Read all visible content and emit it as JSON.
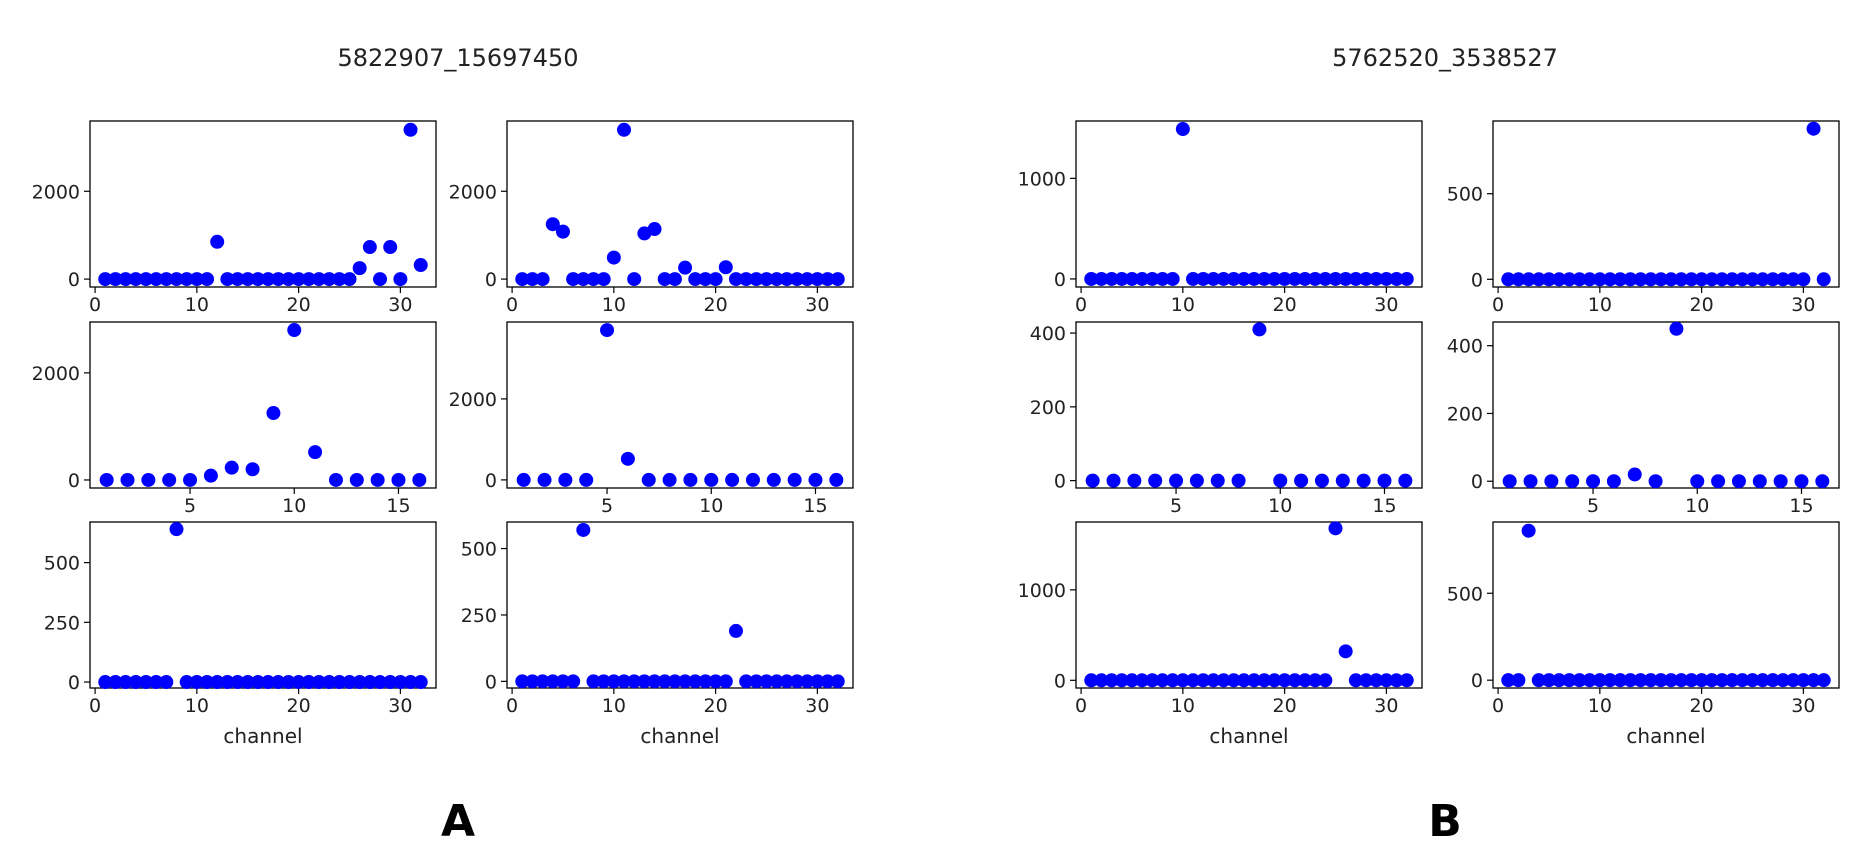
{
  "figure": {
    "panels": [
      {
        "letter": "A",
        "title": "5822907_15697450"
      },
      {
        "letter": "B",
        "title": "5762520_3538527"
      }
    ],
    "marker_color": "#0000ff",
    "text_color": "#222222"
  },
  "chart_data": [
    {
      "panel": "A",
      "position": "row1-left",
      "type": "scatter",
      "xticks": [
        0,
        10,
        20,
        30
      ],
      "yticks": [
        0,
        2000
      ],
      "xlim": [
        -0.5,
        33.5
      ],
      "ylim": [
        -180,
        3600
      ],
      "xlabel": "",
      "x": [
        1,
        2,
        3,
        4,
        5,
        6,
        7,
        8,
        9,
        10,
        11,
        12,
        13,
        14,
        15,
        16,
        17,
        18,
        19,
        20,
        21,
        22,
        23,
        24,
        25,
        26,
        27,
        28,
        29,
        30,
        31,
        32
      ],
      "y": [
        0,
        0,
        0,
        0,
        0,
        0,
        0,
        0,
        0,
        0,
        0,
        850,
        0,
        0,
        0,
        0,
        0,
        0,
        0,
        0,
        0,
        0,
        0,
        0,
        0,
        250,
        730,
        0,
        730,
        0,
        3400,
        320
      ]
    },
    {
      "panel": "A",
      "position": "row1-right",
      "type": "scatter",
      "xticks": [
        0,
        10,
        20,
        30
      ],
      "yticks": [
        0,
        2000
      ],
      "xlim": [
        -0.5,
        33.5
      ],
      "ylim": [
        -180,
        3600
      ],
      "xlabel": "",
      "x": [
        1,
        2,
        3,
        4,
        5,
        6,
        7,
        8,
        9,
        10,
        11,
        12,
        13,
        14,
        15,
        16,
        17,
        18,
        19,
        20,
        21,
        22,
        23,
        24,
        25,
        26,
        27,
        28,
        29,
        30,
        31,
        32
      ],
      "y": [
        0,
        0,
        0,
        1250,
        1080,
        0,
        0,
        0,
        0,
        490,
        3400,
        0,
        1040,
        1140,
        0,
        0,
        260,
        0,
        0,
        0,
        270,
        0,
        0,
        0,
        0,
        0,
        0,
        0,
        0,
        0,
        0,
        0
      ]
    },
    {
      "panel": "A",
      "position": "row2-left",
      "type": "scatter",
      "xticks": [
        5,
        10,
        15
      ],
      "yticks": [
        0,
        2000
      ],
      "xlim": [
        0.2,
        16.8
      ],
      "ylim": [
        -150,
        2950
      ],
      "xlabel": "",
      "x": [
        1,
        2,
        3,
        4,
        5,
        6,
        7,
        8,
        9,
        10,
        11,
        12,
        13,
        14,
        15,
        16
      ],
      "y": [
        0,
        0,
        0,
        0,
        0,
        80,
        230,
        200,
        1250,
        2800,
        520,
        0,
        0,
        0,
        0,
        0
      ]
    },
    {
      "panel": "A",
      "position": "row2-right",
      "type": "scatter",
      "xticks": [
        5,
        10,
        15
      ],
      "yticks": [
        0,
        2000
      ],
      "xlim": [
        0.2,
        16.8
      ],
      "ylim": [
        -200,
        3900
      ],
      "xlabel": "",
      "x": [
        1,
        2,
        3,
        4,
        5,
        6,
        7,
        8,
        9,
        10,
        11,
        12,
        13,
        14,
        15,
        16
      ],
      "y": [
        0,
        0,
        0,
        0,
        3700,
        520,
        0,
        0,
        0,
        0,
        0,
        0,
        0,
        0,
        0,
        0
      ]
    },
    {
      "panel": "A",
      "position": "row3-left",
      "type": "scatter",
      "xticks": [
        0,
        10,
        20,
        30
      ],
      "yticks": [
        0,
        250,
        500
      ],
      "xlim": [
        -0.5,
        33.5
      ],
      "ylim": [
        -25,
        670
      ],
      "xlabel": "channel",
      "x": [
        1,
        2,
        3,
        4,
        5,
        6,
        7,
        8,
        9,
        10,
        11,
        12,
        13,
        14,
        15,
        16,
        17,
        18,
        19,
        20,
        21,
        22,
        23,
        24,
        25,
        26,
        27,
        28,
        29,
        30,
        31,
        32
      ],
      "y": [
        0,
        0,
        0,
        0,
        0,
        0,
        0,
        640,
        0,
        0,
        0,
        0,
        0,
        0,
        0,
        0,
        0,
        0,
        0,
        0,
        0,
        0,
        0,
        0,
        0,
        0,
        0,
        0,
        0,
        0,
        0,
        0
      ]
    },
    {
      "panel": "A",
      "position": "row3-right",
      "type": "scatter",
      "xticks": [
        0,
        10,
        20,
        30
      ],
      "yticks": [
        0,
        250,
        500
      ],
      "xlim": [
        -0.5,
        33.5
      ],
      "ylim": [
        -25,
        600
      ],
      "xlabel": "channel",
      "x": [
        1,
        2,
        3,
        4,
        5,
        6,
        7,
        8,
        9,
        10,
        11,
        12,
        13,
        14,
        15,
        16,
        17,
        18,
        19,
        20,
        21,
        22,
        23,
        24,
        25,
        26,
        27,
        28,
        29,
        30,
        31,
        32
      ],
      "y": [
        0,
        0,
        0,
        0,
        0,
        0,
        570,
        0,
        0,
        0,
        0,
        0,
        0,
        0,
        0,
        0,
        0,
        0,
        0,
        0,
        0,
        190,
        0,
        0,
        0,
        0,
        0,
        0,
        0,
        0,
        0,
        0
      ]
    },
    {
      "panel": "B",
      "position": "row1-left",
      "type": "scatter",
      "xticks": [
        0,
        10,
        20,
        30
      ],
      "yticks": [
        0,
        1000
      ],
      "xlim": [
        -0.5,
        33.5
      ],
      "ylim": [
        -80,
        1570
      ],
      "xlabel": "",
      "x": [
        1,
        2,
        3,
        4,
        5,
        6,
        7,
        8,
        9,
        10,
        11,
        12,
        13,
        14,
        15,
        16,
        17,
        18,
        19,
        20,
        21,
        22,
        23,
        24,
        25,
        26,
        27,
        28,
        29,
        30,
        31,
        32
      ],
      "y": [
        0,
        0,
        0,
        0,
        0,
        0,
        0,
        0,
        0,
        1490,
        0,
        0,
        0,
        0,
        0,
        0,
        0,
        0,
        0,
        0,
        0,
        0,
        0,
        0,
        0,
        0,
        0,
        0,
        0,
        0,
        0,
        0
      ]
    },
    {
      "panel": "B",
      "position": "row1-right",
      "type": "scatter",
      "xticks": [
        0,
        10,
        20,
        30
      ],
      "yticks": [
        0,
        500
      ],
      "xlim": [
        -0.5,
        33.5
      ],
      "ylim": [
        -45,
        925
      ],
      "xlabel": "",
      "x": [
        1,
        2,
        3,
        4,
        5,
        6,
        7,
        8,
        9,
        10,
        11,
        12,
        13,
        14,
        15,
        16,
        17,
        18,
        19,
        20,
        21,
        22,
        23,
        24,
        25,
        26,
        27,
        28,
        29,
        30,
        31,
        32
      ],
      "y": [
        0,
        0,
        0,
        0,
        0,
        0,
        0,
        0,
        0,
        0,
        0,
        0,
        0,
        0,
        0,
        0,
        0,
        0,
        0,
        0,
        0,
        0,
        0,
        0,
        0,
        0,
        0,
        0,
        0,
        0,
        880,
        0
      ]
    },
    {
      "panel": "B",
      "position": "row2-left",
      "type": "scatter",
      "xticks": [
        5,
        10,
        15
      ],
      "yticks": [
        0,
        200,
        400
      ],
      "xlim": [
        0.2,
        16.8
      ],
      "ylim": [
        -20,
        430
      ],
      "xlabel": "",
      "x": [
        1,
        2,
        3,
        4,
        5,
        6,
        7,
        8,
        9,
        10,
        11,
        12,
        13,
        14,
        15,
        16
      ],
      "y": [
        0,
        0,
        0,
        0,
        0,
        0,
        0,
        0,
        410,
        0,
        0,
        0,
        0,
        0,
        0,
        0
      ]
    },
    {
      "panel": "B",
      "position": "row2-right",
      "type": "scatter",
      "xticks": [
        5,
        10,
        15
      ],
      "yticks": [
        0,
        200,
        400
      ],
      "xlim": [
        0.2,
        16.8
      ],
      "ylim": [
        -20,
        470
      ],
      "xlabel": "",
      "x": [
        1,
        2,
        3,
        4,
        5,
        6,
        7,
        8,
        9,
        10,
        11,
        12,
        13,
        14,
        15,
        16
      ],
      "y": [
        0,
        0,
        0,
        0,
        0,
        0,
        20,
        0,
        450,
        0,
        0,
        0,
        0,
        0,
        0,
        0
      ]
    },
    {
      "panel": "B",
      "position": "row3-left",
      "type": "scatter",
      "xticks": [
        0,
        10,
        20,
        30
      ],
      "yticks": [
        0,
        1000
      ],
      "xlim": [
        -0.5,
        33.5
      ],
      "ylim": [
        -85,
        1750
      ],
      "xlabel": "channel",
      "x": [
        1,
        2,
        3,
        4,
        5,
        6,
        7,
        8,
        9,
        10,
        11,
        12,
        13,
        14,
        15,
        16,
        17,
        18,
        19,
        20,
        21,
        22,
        23,
        24,
        25,
        26,
        27,
        28,
        29,
        30,
        31,
        32
      ],
      "y": [
        0,
        0,
        0,
        0,
        0,
        0,
        0,
        0,
        0,
        0,
        0,
        0,
        0,
        0,
        0,
        0,
        0,
        0,
        0,
        0,
        0,
        0,
        0,
        0,
        1680,
        320,
        0,
        0,
        0,
        0,
        0,
        0
      ]
    },
    {
      "panel": "B",
      "position": "row3-right",
      "type": "scatter",
      "xticks": [
        0,
        10,
        20,
        30
      ],
      "yticks": [
        0,
        500
      ],
      "xlim": [
        -0.5,
        33.5
      ],
      "ylim": [
        -45,
        910
      ],
      "xlabel": "channel",
      "x": [
        1,
        2,
        3,
        4,
        5,
        6,
        7,
        8,
        9,
        10,
        11,
        12,
        13,
        14,
        15,
        16,
        17,
        18,
        19,
        20,
        21,
        22,
        23,
        24,
        25,
        26,
        27,
        28,
        29,
        30,
        31,
        32
      ],
      "y": [
        0,
        0,
        860,
        0,
        0,
        0,
        0,
        0,
        0,
        0,
        0,
        0,
        0,
        0,
        0,
        0,
        0,
        0,
        0,
        0,
        0,
        0,
        0,
        0,
        0,
        0,
        0,
        0,
        0,
        0,
        0,
        0
      ]
    }
  ]
}
